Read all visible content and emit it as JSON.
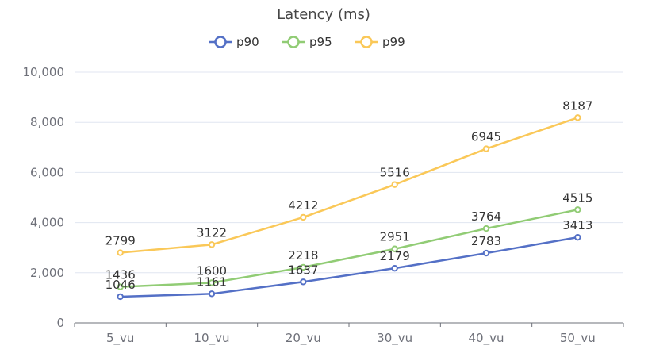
{
  "chart_data": {
    "type": "line",
    "title": "Latency (ms)",
    "categories": [
      "5_vu",
      "10_vu",
      "20_vu",
      "30_vu",
      "40_vu",
      "50_vu"
    ],
    "series": [
      {
        "name": "p90",
        "color": "#5470c6",
        "values": [
          1046,
          1161,
          1637,
          2179,
          2783,
          3413
        ]
      },
      {
        "name": "p95",
        "color": "#91cc75",
        "values": [
          1436,
          1600,
          2218,
          2951,
          3764,
          4515
        ]
      },
      {
        "name": "p99",
        "color": "#fac858",
        "values": [
          2799,
          3122,
          4212,
          5516,
          6945,
          8187
        ]
      }
    ],
    "ylim": [
      0,
      10000
    ],
    "yticks": [
      0,
      2000,
      4000,
      6000,
      8000,
      10000
    ],
    "ytick_labels": [
      "0",
      "2,000",
      "4,000",
      "6,000",
      "8,000",
      "10,000"
    ],
    "xlabel": "",
    "ylabel": "",
    "legend_position": "top-center",
    "grid": true
  }
}
